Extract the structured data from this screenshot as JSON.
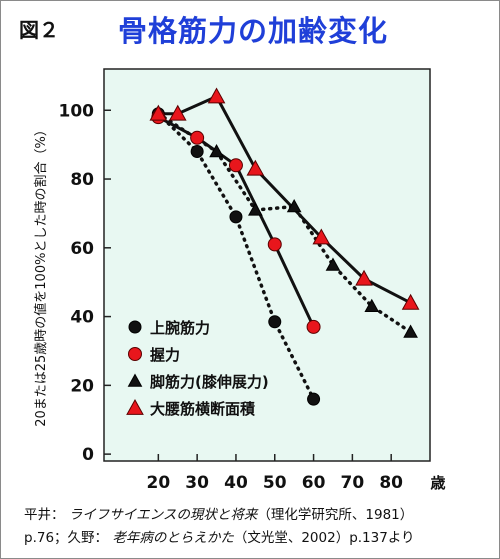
{
  "figure": {
    "label": "図２",
    "title": "骨格筋力の加齢変化"
  },
  "citation": {
    "line1": {
      "author": "平井：",
      "work": "ライフサイエンスの現状と将来",
      "publisher": "（理化学研究所、1981）"
    },
    "line2": {
      "pages": "p.76；久野：",
      "work": "老年病のとらえかた",
      "publisher": "（文光堂、2002）p.137より"
    }
  },
  "colors": {
    "plot_background": "#e8f8f2",
    "red": "#e8161c",
    "black": "#111111"
  },
  "chart_data": {
    "type": "line",
    "ylabel": "20または25歳時の値を100%とした時の割合（%）",
    "x_unit_label": "歳",
    "x_ticks": [
      20,
      30,
      40,
      50,
      60,
      70,
      80
    ],
    "y_ticks": [
      0,
      20,
      40,
      60,
      80,
      100
    ],
    "xlim": [
      6,
      90
    ],
    "ylim": [
      -2,
      112
    ],
    "grid": false,
    "legend_position": "bottom-left",
    "series": [
      {
        "name": "上腕筋力",
        "marker": "circle",
        "marker_color": "black",
        "line_style": "dotted",
        "points": [
          [
            20,
            99
          ],
          [
            30,
            88
          ],
          [
            40,
            69
          ],
          [
            50,
            38.5
          ],
          [
            60,
            16
          ]
        ]
      },
      {
        "name": "握力",
        "marker": "circle",
        "marker_color": "red",
        "line_style": "solid",
        "points": [
          [
            20,
            98
          ],
          [
            30,
            92
          ],
          [
            40,
            84
          ],
          [
            50,
            61
          ],
          [
            60,
            37
          ]
        ]
      },
      {
        "name": "脚筋力(膝伸展力)",
        "marker": "triangle",
        "marker_color": "black",
        "line_style": "dotted",
        "points": [
          [
            20,
            99
          ],
          [
            35,
            88
          ],
          [
            45,
            71
          ],
          [
            55,
            72
          ],
          [
            65,
            55
          ],
          [
            75,
            43
          ],
          [
            85,
            35.5
          ]
        ]
      },
      {
        "name": "大腰筋横断面積",
        "marker": "triangle",
        "marker_color": "red",
        "line_style": "solid",
        "points": [
          [
            20,
            99
          ],
          [
            25,
            99
          ],
          [
            35,
            104
          ],
          [
            45,
            83
          ],
          [
            62,
            63
          ],
          [
            73,
            51
          ],
          [
            85,
            44
          ]
        ]
      }
    ]
  }
}
